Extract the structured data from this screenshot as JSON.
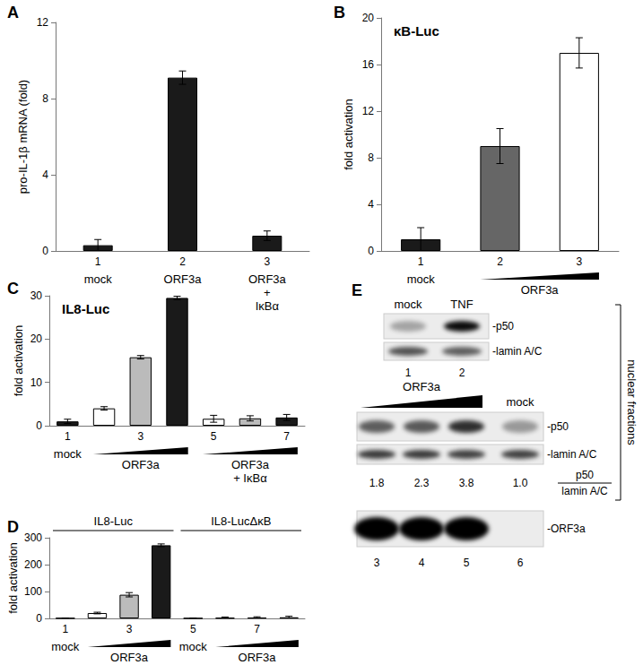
{
  "chart_data": [
    {
      "type": "bar",
      "label": "A",
      "ylabel": "pro-IL-1β mRNA (fold)",
      "categories": [
        "1",
        "2",
        "3"
      ],
      "groups": [
        {
          "label": "mock",
          "span": [
            0,
            0
          ]
        },
        {
          "label": "ORF3a",
          "span": [
            1,
            1
          ]
        },
        {
          "label": "ORF3a\n+\nIκBα",
          "span": [
            2,
            2
          ]
        }
      ],
      "values": [
        0.3,
        9.1,
        0.8
      ],
      "errors": [
        0.3,
        0.35,
        0.25
      ],
      "colors": [
        "#1a1a1a",
        "#1a1a1a",
        "#1a1a1a"
      ],
      "ylim": [
        0,
        12
      ],
      "yticks": [
        0,
        4,
        8,
        12
      ]
    },
    {
      "type": "bar",
      "label": "B",
      "title": "κB-Luc",
      "ylabel": "fold activation",
      "categories": [
        "1",
        "2",
        "3"
      ],
      "groups": [
        {
          "label": "mock",
          "span": [
            0,
            0
          ]
        },
        {
          "label": "ORF3a",
          "span": [
            1,
            2
          ]
        }
      ],
      "values": [
        1.0,
        9.0,
        17.0
      ],
      "errors": [
        1.0,
        1.5,
        1.3
      ],
      "colors": [
        "#1a1a1a",
        "#666666",
        "#ffffff"
      ],
      "ylim": [
        0,
        20
      ],
      "yticks": [
        0,
        4,
        8,
        12,
        16,
        20
      ]
    },
    {
      "type": "bar",
      "label": "C",
      "title": "IL8-Luc",
      "ylabel": "fold activation",
      "categories": [
        "1",
        null,
        "3",
        null,
        "5",
        null,
        "7"
      ],
      "groups": [
        {
          "label": "mock",
          "span": [
            0,
            0
          ]
        },
        {
          "label": "ORF3a",
          "span": [
            1,
            3
          ]
        },
        {
          "label": "ORF3a\n+ IκBα",
          "span": [
            4,
            6
          ]
        }
      ],
      "values": [
        1.0,
        4.0,
        15.8,
        29.5,
        1.6,
        1.7,
        1.9
      ],
      "errors": [
        0.5,
        0.4,
        0.4,
        0.4,
        0.8,
        0.6,
        0.7
      ],
      "colors": [
        "#1a1a1a",
        "#ffffff",
        "#bbbbbb",
        "#1a1a1a",
        "#ffffff",
        "#bbbbbb",
        "#1a1a1a"
      ],
      "ylim": [
        0,
        30
      ],
      "yticks": [
        0,
        10,
        20,
        30
      ]
    },
    {
      "type": "bar",
      "label": "D",
      "ylabel": "fold activation",
      "headers": [
        {
          "label": "IL8-Luc",
          "span": [
            0,
            3
          ]
        },
        {
          "label": "IL8-LucΔκB",
          "span": [
            4,
            7
          ]
        }
      ],
      "categories": [
        "1",
        null,
        "3",
        null,
        "5",
        null,
        "7",
        null
      ],
      "groups": [
        {
          "label": "mock",
          "span": [
            0,
            0
          ]
        },
        {
          "label": "ORF3a",
          "span": [
            1,
            3
          ]
        },
        {
          "label": "mock",
          "span": [
            4,
            4
          ]
        },
        {
          "label": "ORF3a",
          "span": [
            5,
            7
          ]
        }
      ],
      "values": [
        1,
        20,
        88,
        272,
        0.5,
        2,
        3,
        4
      ],
      "errors": [
        0.5,
        3,
        8,
        5,
        0.3,
        3,
        3,
        4
      ],
      "colors": [
        "#1a1a1a",
        "#ffffff",
        "#bbbbbb",
        "#1a1a1a",
        "#1a1a1a",
        "#ffffff",
        "#bbbbbb",
        "#1a1a1a"
      ],
      "ylim": [
        0,
        300
      ],
      "yticks": [
        0,
        100,
        200,
        300
      ]
    }
  ],
  "blot": {
    "label": "E",
    "side_label": "nuclear fractions",
    "top": {
      "lanes": [
        {
          "label": "mock",
          "number": "1"
        },
        {
          "label": "TNF",
          "number": "2"
        }
      ],
      "rows": [
        {
          "label": "-p50",
          "intensity": [
            0.3,
            0.95
          ]
        },
        {
          "label": "-lamin A/C",
          "intensity": [
            0.65,
            0.6
          ]
        }
      ]
    },
    "bottom": {
      "group": {
        "label": "ORF3a",
        "span": [
          0,
          2
        ]
      },
      "lanes": [
        {
          "number": "3"
        },
        {
          "number": "4"
        },
        {
          "number": "5"
        },
        {
          "number": "6",
          "label": "mock"
        }
      ],
      "rows": [
        {
          "label": "-p50",
          "intensity": [
            0.6,
            0.62,
            0.8,
            0.35
          ]
        },
        {
          "label": "-lamin A/C",
          "intensity": [
            0.75,
            0.75,
            0.72,
            0.72
          ]
        }
      ],
      "ratios": [
        "1.8",
        "2.3",
        "3.8",
        "1.0"
      ],
      "ratio_label": {
        "numerator": "p50",
        "denominator": "lamin A/C"
      },
      "orf3a": {
        "label": "-ORF3a",
        "intensity": [
          1,
          1,
          1,
          0
        ]
      }
    }
  }
}
